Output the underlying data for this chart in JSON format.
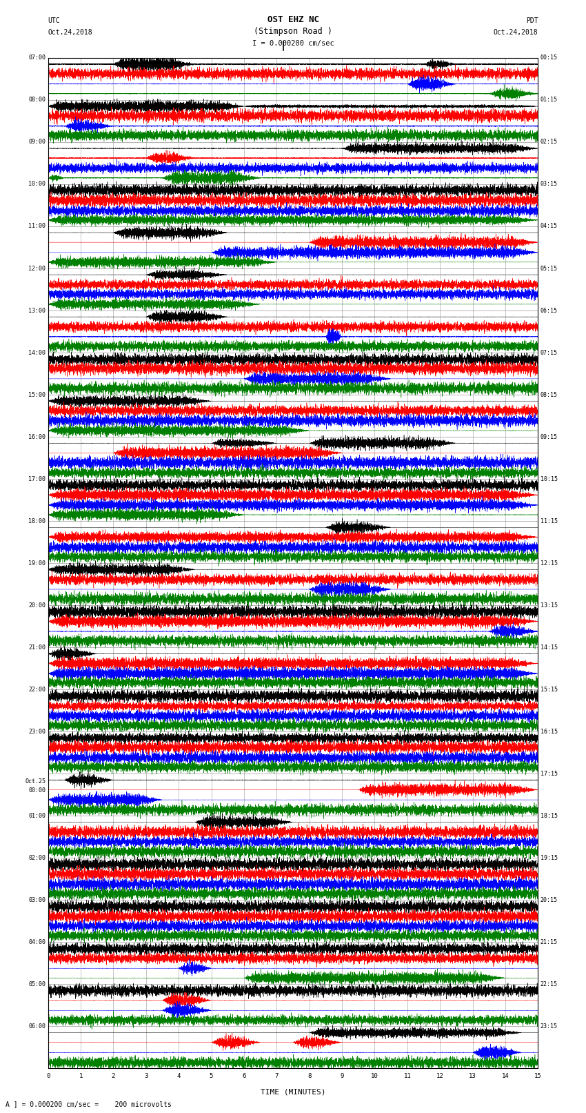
{
  "title_line1": "OST EHZ NC",
  "title_line2": "(Stimpson Road )",
  "title_scale": "I = 0.000200 cm/sec",
  "label_left_top1": "UTC",
  "label_left_top2": "Oct.24,2018",
  "label_right_top1": "PDT",
  "label_right_top2": "Oct.24,2018",
  "xlabel": "TIME (MINUTES)",
  "footnote": "A ] = 0.000200 cm/sec =    200 microvolts",
  "x_ticks": [
    0,
    1,
    2,
    3,
    4,
    5,
    6,
    7,
    8,
    9,
    10,
    11,
    12,
    13,
    14,
    15
  ],
  "left_labels_utc": [
    "07:00",
    "08:00",
    "09:00",
    "10:00",
    "11:00",
    "12:00",
    "13:00",
    "14:00",
    "15:00",
    "16:00",
    "17:00",
    "18:00",
    "19:00",
    "20:00",
    "21:00",
    "22:00",
    "23:00",
    "Oct.25\n00:00",
    "01:00",
    "02:00",
    "03:00",
    "04:00",
    "05:00",
    "06:00"
  ],
  "right_labels_pdt": [
    "00:15",
    "01:15",
    "02:15",
    "03:15",
    "04:15",
    "05:15",
    "06:15",
    "07:15",
    "08:15",
    "09:15",
    "10:15",
    "11:15",
    "12:15",
    "13:15",
    "14:15",
    "15:15",
    "16:15",
    "17:15",
    "18:15",
    "19:15",
    "20:15",
    "21:15",
    "22:15",
    "23:15"
  ],
  "n_rows": 24,
  "traces_per_row": 4,
  "trace_colors": [
    "black",
    "red",
    "blue",
    "green"
  ],
  "bg_color": "#ffffff",
  "plot_bg": "#ffffff",
  "grid_color": "#999999",
  "x_min": 0,
  "x_max": 15,
  "fig_width": 8.5,
  "fig_height": 16.13
}
